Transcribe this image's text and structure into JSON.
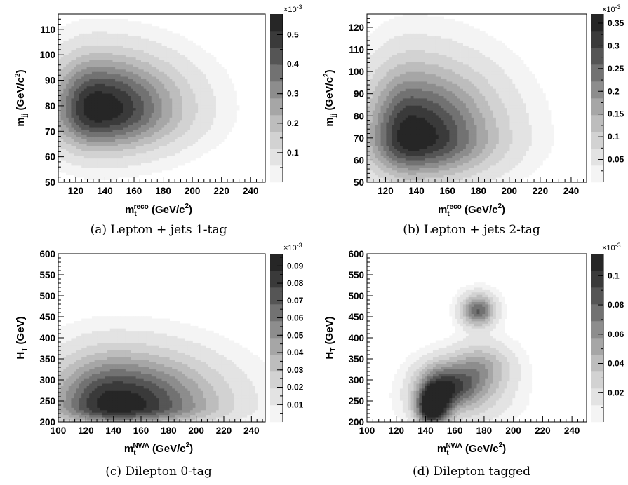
{
  "chart_data": [
    {
      "id": "a",
      "type": "heatmap",
      "caption": "(a) Lepton + jets 1-tag",
      "xlabel": "m_t^reco (GeV/c^2)",
      "xlabel_main": "m",
      "xlabel_sub": "t",
      "xlabel_sup": "reco",
      "xlabel_rest": " (GeV/c",
      "xlabel_pow": "2",
      "xlabel_end": ")",
      "ylabel_main": "m",
      "ylabel_sub": "jj",
      "ylabel_rest": " (GeV/c",
      "ylabel_pow": "2",
      "ylabel_end": ")",
      "xlim": [
        108,
        250
      ],
      "ylim": [
        50,
        116
      ],
      "xticks": [
        120,
        140,
        160,
        180,
        200,
        220,
        240
      ],
      "yticks": [
        50,
        60,
        70,
        80,
        90,
        100,
        110
      ],
      "zlim": [
        0,
        0.57
      ],
      "zticks": [
        0.1,
        0.2,
        0.3,
        0.4,
        0.5
      ],
      "ztick_labels": [
        "0.1",
        "0.2",
        "0.3",
        "0.4",
        "0.5"
      ],
      "z_multiplier": "×10",
      "z_multiplier_exp": "-3",
      "peaks": [
        {
          "x": 135,
          "y": 79,
          "amp": 0.57,
          "sxl": 22,
          "sxr": 38,
          "syb": 11,
          "syt": 14
        }
      ]
    },
    {
      "id": "b",
      "type": "heatmap",
      "caption": "(b) Lepton + jets 2-tag",
      "xlabel_main": "m",
      "xlabel_sub": "t",
      "xlabel_sup": "reco",
      "xlabel_rest": " (GeV/c",
      "xlabel_pow": "2",
      "xlabel_end": ")",
      "ylabel_main": "m",
      "ylabel_sub": "jj",
      "ylabel_rest": " (GeV/c",
      "ylabel_pow": "2",
      "ylabel_end": ")",
      "xlim": [
        108,
        250
      ],
      "ylim": [
        50,
        126
      ],
      "xticks": [
        120,
        140,
        160,
        180,
        200,
        220,
        240
      ],
      "yticks": [
        50,
        60,
        70,
        80,
        90,
        100,
        110,
        120
      ],
      "zlim": [
        0,
        0.37
      ],
      "zticks": [
        0.05,
        0.1,
        0.15,
        0.2,
        0.25,
        0.3,
        0.35
      ],
      "ztick_labels": [
        "0.05",
        "0.1",
        "0.15",
        "0.2",
        "0.25",
        "0.3",
        "0.35"
      ],
      "z_multiplier": "×10",
      "z_multiplier_exp": "-3",
      "peaks": [
        {
          "x": 137,
          "y": 70,
          "amp": 0.37,
          "sxl": 20,
          "sxr": 36,
          "syb": 12,
          "syt": 22
        }
      ]
    },
    {
      "id": "c",
      "type": "heatmap",
      "caption": "(c) Dilepton 0-tag",
      "xlabel_main": "m",
      "xlabel_sub": "t",
      "xlabel_sup": "NWA",
      "xlabel_rest": " (GeV/c",
      "xlabel_pow": "2",
      "xlabel_end": ")",
      "ylabel_main": "H",
      "ylabel_sub": "T",
      "ylabel_rest": " (GeV)",
      "ylabel_pow": "",
      "ylabel_end": "",
      "xlim": [
        100,
        250
      ],
      "ylim": [
        200,
        600
      ],
      "xticks": [
        100,
        120,
        140,
        160,
        180,
        200,
        220,
        240
      ],
      "yticks": [
        200,
        250,
        300,
        350,
        400,
        450,
        500,
        550,
        600
      ],
      "zlim": [
        0,
        0.097
      ],
      "zticks": [
        0.01,
        0.02,
        0.03,
        0.04,
        0.05,
        0.06,
        0.07,
        0.08,
        0.09
      ],
      "ztick_labels": [
        "0.01",
        "0.02",
        "0.03",
        "0.04",
        "0.05",
        "0.06",
        "0.07",
        "0.08",
        "0.09"
      ],
      "z_multiplier": "×10",
      "z_multiplier_exp": "-3",
      "peaks": [
        {
          "x": 142,
          "y": 238,
          "amp": 0.097,
          "sxl": 32,
          "sxr": 48,
          "syb": 30,
          "syt": 85
        }
      ]
    },
    {
      "id": "d",
      "type": "heatmap",
      "caption": "(d) Dilepton tagged",
      "xlabel_main": "m",
      "xlabel_sub": "t",
      "xlabel_sup": "NWA",
      "xlabel_rest": " (GeV/c",
      "xlabel_pow": "2",
      "xlabel_end": ")",
      "ylabel_main": "H",
      "ylabel_sub": "T",
      "ylabel_rest": " (GeV)",
      "ylabel_pow": "",
      "ylabel_end": "",
      "xlim": [
        100,
        250
      ],
      "ylim": [
        200,
        600
      ],
      "xticks": [
        100,
        120,
        140,
        160,
        180,
        200,
        220,
        240
      ],
      "yticks": [
        200,
        250,
        300,
        350,
        400,
        450,
        500,
        550,
        600
      ],
      "zlim": [
        0,
        0.115
      ],
      "zticks": [
        0.02,
        0.04,
        0.06,
        0.08,
        0.1
      ],
      "ztick_labels": [
        "0.02",
        "0.04",
        "0.06",
        "0.08",
        "0.1"
      ],
      "z_multiplier": "×10",
      "z_multiplier_exp": "-3",
      "peaks": [
        {
          "x": 144,
          "y": 232,
          "amp": 0.115,
          "sxl": 7,
          "sxr": 8,
          "syb": 28,
          "syt": 32
        },
        {
          "x": 152,
          "y": 285,
          "amp": 0.075,
          "sxl": 12,
          "sxr": 16,
          "syb": 32,
          "syt": 40
        },
        {
          "x": 178,
          "y": 335,
          "amp": 0.042,
          "sxl": 13,
          "sxr": 15,
          "syb": 45,
          "syt": 40
        },
        {
          "x": 176,
          "y": 465,
          "amp": 0.082,
          "sxl": 8,
          "sxr": 8,
          "syb": 25,
          "syt": 27
        },
        {
          "x": 160,
          "y": 250,
          "amp": 0.03,
          "sxl": 22,
          "sxr": 25,
          "syb": 40,
          "syt": 60
        }
      ]
    }
  ],
  "palette": {
    "background": "#ffffff",
    "levels": [
      "#f4f4f4",
      "#e3e3e3",
      "#d2d2d2",
      "#bdbdbd",
      "#a6a6a6",
      "#8d8d8d",
      "#727272",
      "#555555",
      "#3a3a3a",
      "#262626"
    ]
  }
}
